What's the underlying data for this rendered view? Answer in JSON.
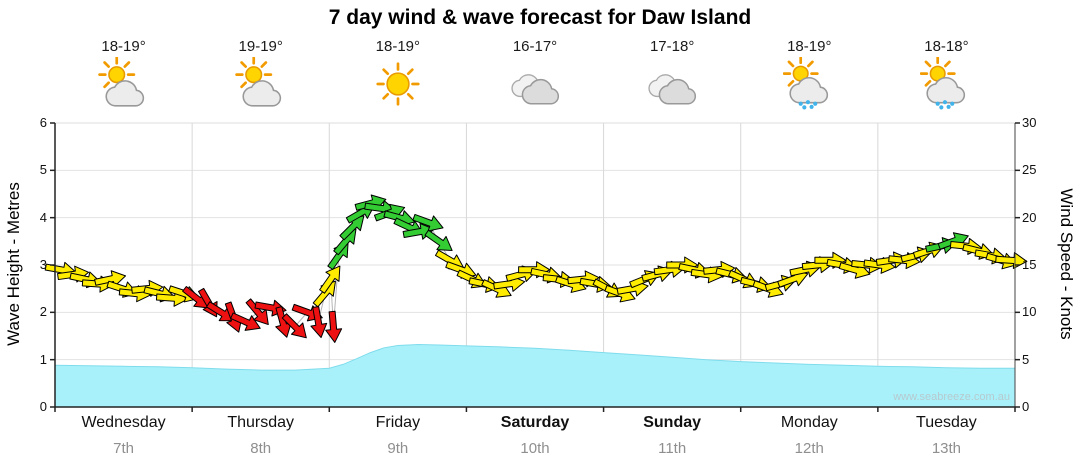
{
  "watermark": "www.seabreeze.com.au",
  "axes": {
    "left_label": "Wave Height - Metres",
    "right_label": "Wind Speed - Knots",
    "wave_ticks": [
      0,
      1,
      2,
      3,
      4,
      5,
      6
    ],
    "wind_ticks": [
      0,
      5,
      10,
      15,
      20,
      25,
      30
    ]
  },
  "days": [
    {
      "name": "Wednesday",
      "date": "7th",
      "temp": "18-19°",
      "icon": "sun-cloud",
      "bold": false
    },
    {
      "name": "Thursday",
      "date": "8th",
      "temp": "19-19°",
      "icon": "sun-cloud",
      "bold": false
    },
    {
      "name": "Friday",
      "date": "9th",
      "temp": "18-19°",
      "icon": "sun",
      "bold": false
    },
    {
      "name": "Saturday",
      "date": "10th",
      "temp": "16-17°",
      "icon": "clouds",
      "bold": true
    },
    {
      "name": "Sunday",
      "date": "11th",
      "temp": "17-18°",
      "icon": "clouds",
      "bold": true
    },
    {
      "name": "Monday",
      "date": "12th",
      "temp": "18-19°",
      "icon": "sun-cloud-rain",
      "bold": false
    },
    {
      "name": "Tuesday",
      "date": "13th",
      "temp": "18-18°",
      "icon": "sun-cloud-rain",
      "bold": false
    }
  ],
  "chart_data": {
    "type": "combo (area wave height + wind-speed arrow track)",
    "title": "7 day wind & wave forecast for Daw Island",
    "categories": [
      "Wednesday 7th",
      "Thursday 8th",
      "Friday 9th",
      "Saturday 10th",
      "Sunday 11th",
      "Monday 12th",
      "Tuesday 13th"
    ],
    "x_unit": "days from Wednesday 00:00 (0..7)",
    "wave_axis": {
      "label": "Wave Height - Metres",
      "ylim": [
        0,
        6
      ]
    },
    "wind_axis": {
      "label": "Wind Speed - Knots",
      "ylim": [
        0,
        30
      ]
    },
    "wave_series": {
      "name": "Wave Height (m)",
      "fill": "#a9f1fa",
      "edge": "#7fdcec",
      "points": [
        [
          0,
          0.88
        ],
        [
          0.25,
          0.87
        ],
        [
          0.5,
          0.86
        ],
        [
          0.75,
          0.85
        ],
        [
          1,
          0.83
        ],
        [
          1.25,
          0.8
        ],
        [
          1.5,
          0.78
        ],
        [
          1.75,
          0.78
        ],
        [
          2,
          0.82
        ],
        [
          2.1,
          0.9
        ],
        [
          2.2,
          1.02
        ],
        [
          2.3,
          1.15
        ],
        [
          2.4,
          1.25
        ],
        [
          2.5,
          1.3
        ],
        [
          2.65,
          1.32
        ],
        [
          2.8,
          1.31
        ],
        [
          3,
          1.29
        ],
        [
          3.25,
          1.27
        ],
        [
          3.5,
          1.24
        ],
        [
          3.75,
          1.2
        ],
        [
          4,
          1.15
        ],
        [
          4.25,
          1.1
        ],
        [
          4.5,
          1.05
        ],
        [
          4.75,
          1
        ],
        [
          5,
          0.96
        ],
        [
          5.25,
          0.93
        ],
        [
          5.5,
          0.9
        ],
        [
          5.75,
          0.88
        ],
        [
          6,
          0.86
        ],
        [
          6.25,
          0.85
        ],
        [
          6.5,
          0.83
        ],
        [
          6.75,
          0.82
        ],
        [
          7,
          0.82
        ]
      ]
    },
    "wind_series": {
      "name": "Wind Speed (knots)",
      "colors": {
        "y": "#ffec00",
        "r": "#ee1111",
        "g": "#33cc33"
      },
      "point_format": "[t_days, knots, arrow_angle_deg_clockwise_from_east, color_key]",
      "points": [
        [
          0.04,
          14.5,
          10,
          "y"
        ],
        [
          0.13,
          14,
          -8,
          "y"
        ],
        [
          0.22,
          13.5,
          12,
          "y"
        ],
        [
          0.31,
          13,
          4,
          "y"
        ],
        [
          0.4,
          13.5,
          -12,
          "y"
        ],
        [
          0.49,
          12.5,
          18,
          "y"
        ],
        [
          0.58,
          12,
          6,
          "y"
        ],
        [
          0.67,
          12.5,
          -6,
          "y"
        ],
        [
          0.76,
          12,
          14,
          "y"
        ],
        [
          0.85,
          11.5,
          4,
          "y"
        ],
        [
          0.94,
          12,
          18,
          "y"
        ],
        [
          1.03,
          11.5,
          38,
          "r"
        ],
        [
          1.12,
          11,
          60,
          "r"
        ],
        [
          1.21,
          10,
          32,
          "r"
        ],
        [
          1.3,
          9.5,
          70,
          "r"
        ],
        [
          1.39,
          9,
          24,
          "r"
        ],
        [
          1.48,
          10,
          50,
          "r"
        ],
        [
          1.57,
          10.5,
          10,
          "r"
        ],
        [
          1.66,
          9,
          75,
          "r"
        ],
        [
          1.75,
          8.5,
          45,
          "r"
        ],
        [
          1.84,
          10,
          20,
          "r"
        ],
        [
          1.92,
          9,
          80,
          "r"
        ],
        [
          1.97,
          12,
          -50,
          "y"
        ],
        [
          2.01,
          13.5,
          -55,
          "y"
        ],
        [
          2.03,
          8.5,
          85,
          "r"
        ],
        [
          2.07,
          16,
          -55,
          "g"
        ],
        [
          2.12,
          17.5,
          -50,
          "g"
        ],
        [
          2.17,
          19,
          -45,
          "g"
        ],
        [
          2.23,
          20.5,
          -30,
          "g"
        ],
        [
          2.3,
          21.5,
          -15,
          "g"
        ],
        [
          2.37,
          21,
          8,
          "g"
        ],
        [
          2.44,
          20.5,
          -20,
          "g"
        ],
        [
          2.51,
          20,
          15,
          "g"
        ],
        [
          2.58,
          19,
          25,
          "g"
        ],
        [
          2.65,
          18.5,
          -10,
          "g"
        ],
        [
          2.72,
          19.5,
          20,
          "g"
        ],
        [
          2.8,
          17.5,
          35,
          "g"
        ],
        [
          2.88,
          15.5,
          30,
          "y"
        ],
        [
          2.96,
          14.5,
          20,
          "y"
        ],
        [
          3.04,
          13.5,
          25,
          "y"
        ],
        [
          3.13,
          13,
          12,
          "y"
        ],
        [
          3.22,
          12.5,
          25,
          "y"
        ],
        [
          3.31,
          13,
          -8,
          "y"
        ],
        [
          3.4,
          14,
          -15,
          "y"
        ],
        [
          3.49,
          14.5,
          0,
          "y"
        ],
        [
          3.58,
          14,
          12,
          "y"
        ],
        [
          3.67,
          13.5,
          6,
          "y"
        ],
        [
          3.76,
          13,
          18,
          "y"
        ],
        [
          3.85,
          13.5,
          -6,
          "y"
        ],
        [
          3.94,
          13,
          10,
          "y"
        ],
        [
          4.03,
          12.5,
          28,
          "y"
        ],
        [
          4.12,
          12,
          20,
          "y"
        ],
        [
          4.21,
          12.5,
          -10,
          "y"
        ],
        [
          4.3,
          13.5,
          -22,
          "y"
        ],
        [
          4.39,
          14,
          -15,
          "y"
        ],
        [
          4.48,
          14.5,
          -8,
          "y"
        ],
        [
          4.57,
          15,
          0,
          "y"
        ],
        [
          4.66,
          14.5,
          12,
          "y"
        ],
        [
          4.75,
          14,
          8,
          "y"
        ],
        [
          4.84,
          14.5,
          -6,
          "y"
        ],
        [
          4.93,
          14,
          14,
          "y"
        ],
        [
          5.02,
          13.5,
          24,
          "y"
        ],
        [
          5.11,
          13,
          14,
          "y"
        ],
        [
          5.2,
          12.5,
          20,
          "y"
        ],
        [
          5.29,
          13,
          -15,
          "y"
        ],
        [
          5.38,
          13.5,
          -20,
          "y"
        ],
        [
          5.47,
          14.5,
          -12,
          "y"
        ],
        [
          5.56,
          15,
          -6,
          "y"
        ],
        [
          5.65,
          15.5,
          0,
          "y"
        ],
        [
          5.74,
          15,
          10,
          "y"
        ],
        [
          5.83,
          14.5,
          16,
          "y"
        ],
        [
          5.92,
          15,
          6,
          "y"
        ],
        [
          6.01,
          15,
          8,
          "y"
        ],
        [
          6.1,
          15.5,
          -8,
          "y"
        ],
        [
          6.19,
          15.5,
          6,
          "y"
        ],
        [
          6.28,
          16,
          -14,
          "y"
        ],
        [
          6.37,
          16.5,
          -18,
          "y"
        ],
        [
          6.46,
          17,
          -12,
          "g"
        ],
        [
          6.55,
          17.5,
          -20,
          "g"
        ],
        [
          6.64,
          17,
          6,
          "y"
        ],
        [
          6.73,
          16.5,
          14,
          "y"
        ],
        [
          6.82,
          16,
          10,
          "y"
        ],
        [
          6.9,
          15.5,
          16,
          "y"
        ],
        [
          6.97,
          15.5,
          4,
          "y"
        ]
      ]
    }
  }
}
